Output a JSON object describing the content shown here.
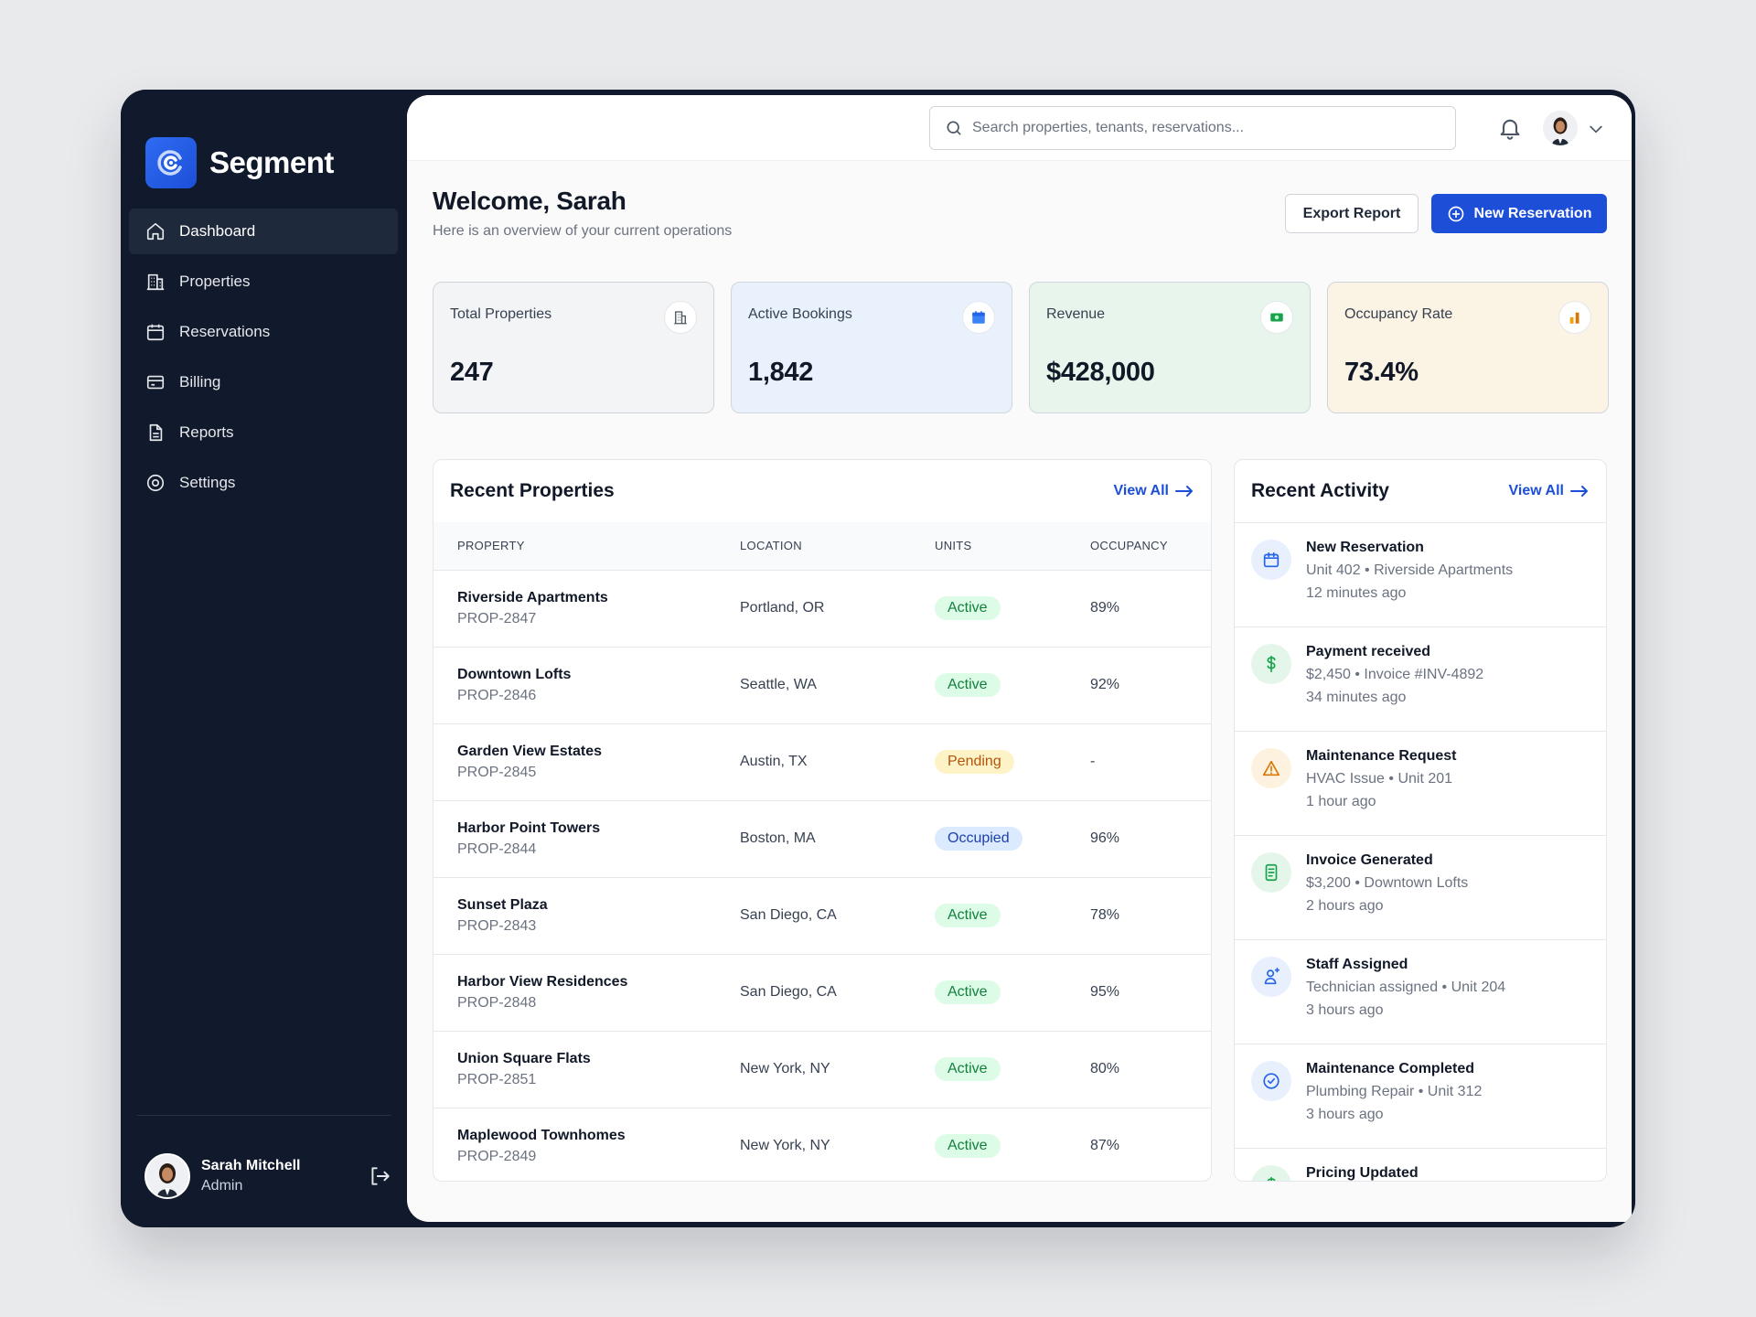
{
  "brand": {
    "name": "Segment"
  },
  "sidebar": {
    "items": [
      {
        "label": "Dashboard",
        "icon": "home-icon",
        "active": true
      },
      {
        "label": "Properties",
        "icon": "building-icon"
      },
      {
        "label": "Reservations",
        "icon": "calendar-icon"
      },
      {
        "label": "Billing",
        "icon": "credit-card-icon"
      },
      {
        "label": "Reports",
        "icon": "document-icon"
      },
      {
        "label": "Settings",
        "icon": "gear-icon"
      }
    ],
    "user": {
      "name": "Sarah Mitchell",
      "role": "Admin"
    }
  },
  "topbar": {
    "search_placeholder": "Search properties, tenants, reservations..."
  },
  "header": {
    "title": "Welcome, Sarah",
    "subtitle": "Here is an overview of your current operations",
    "export_label": "Export Report",
    "new_label": "New Reservation"
  },
  "stats": [
    {
      "label": "Total Properties",
      "value": "247",
      "icon": "building-icon",
      "bg": "#f3f4f6"
    },
    {
      "label": "Active Bookings",
      "value": "1,842",
      "icon": "calendar-icon",
      "bg": "#e8f1fc"
    },
    {
      "label": "Revenue",
      "value": "$428,000",
      "icon": "cash-icon",
      "bg": "#e8f5ec"
    },
    {
      "label": "Occupancy Rate",
      "value": "73.4%",
      "icon": "bar-chart-icon",
      "bg": "#fbf3e4"
    }
  ],
  "properties": {
    "title": "Recent Properties",
    "view_all": "View All",
    "columns": [
      "PROPERTY",
      "LOCATION",
      "UNITS",
      "OCCUPANCY"
    ],
    "rows": [
      {
        "name": "Riverside Apartments",
        "id": "PROP-2847",
        "location": "Portland, OR",
        "status": "Active",
        "occupancy": "89%"
      },
      {
        "name": "Downtown Lofts",
        "id": "PROP-2846",
        "location": "Seattle, WA",
        "status": "Active",
        "occupancy": "92%"
      },
      {
        "name": "Garden View Estates",
        "id": "PROP-2845",
        "location": "Austin, TX",
        "status": "Pending",
        "occupancy": "-"
      },
      {
        "name": "Harbor Point Towers",
        "id": "PROP-2844",
        "location": "Boston, MA",
        "status": "Occupied",
        "occupancy": "96%"
      },
      {
        "name": "Sunset Plaza",
        "id": "PROP-2843",
        "location": "San Diego, CA",
        "status": "Active",
        "occupancy": "78%"
      },
      {
        "name": "Harbor View Residences",
        "id": "PROP-2848",
        "location": "San Diego, CA",
        "status": "Active",
        "occupancy": "95%"
      },
      {
        "name": "Union Square Flats",
        "id": "PROP-2851",
        "location": "New York, NY",
        "status": "Active",
        "occupancy": "80%"
      },
      {
        "name": "Maplewood Townhomes",
        "id": "PROP-2849",
        "location": "New York, NY",
        "status": "Active",
        "occupancy": "87%"
      }
    ]
  },
  "activity": {
    "title": "Recent Activity",
    "view_all": "View All",
    "items": [
      {
        "title": "New Reservation",
        "meta": "Unit 402 • Riverside Apartments",
        "time": "12 minutes ago",
        "icon": "calendar-icon",
        "color": "#2563eb",
        "bg": "#e8f0fd"
      },
      {
        "title": "Payment received",
        "meta": "$2,450 • Invoice #INV-4892",
        "time": "34 minutes ago",
        "icon": "dollar-icon",
        "color": "#16a34a",
        "bg": "#e4f6ea"
      },
      {
        "title": "Maintenance Request",
        "meta": "HVAC Issue • Unit 201",
        "time": "1 hour ago",
        "icon": "warning-icon",
        "color": "#d97706",
        "bg": "#fdf2e0"
      },
      {
        "title": "Invoice Generated",
        "meta": "$3,200 • Downtown Lofts",
        "time": "2 hours ago",
        "icon": "receipt-icon",
        "color": "#16a34a",
        "bg": "#e4f6ea"
      },
      {
        "title": "Staff Assigned",
        "meta": "Technician assigned • Unit 204",
        "time": "3 hours ago",
        "icon": "user-plus-icon",
        "color": "#2563eb",
        "bg": "#e8f0fd"
      },
      {
        "title": "Maintenance Completed",
        "meta": "Plumbing Repair • Unit 312",
        "time": "3 hours ago",
        "icon": "check-circle-icon",
        "color": "#2563eb",
        "bg": "#e8f0fd"
      },
      {
        "title": "Pricing Updated",
        "meta": "",
        "time": "",
        "icon": "dollar-icon",
        "color": "#16a34a",
        "bg": "#e4f6ea"
      }
    ]
  }
}
